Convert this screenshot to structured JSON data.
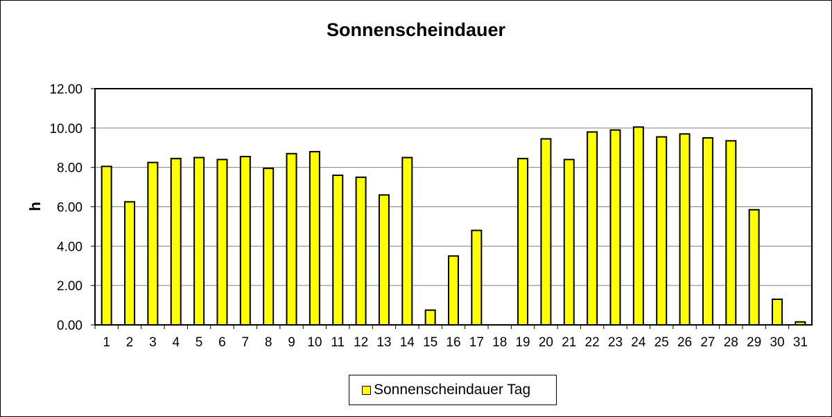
{
  "chart_data": {
    "type": "bar",
    "title": "Sonnenscheindauer",
    "ylabel": "h",
    "xlabel": "",
    "ylim": [
      0,
      12
    ],
    "yticks": [
      "0.00",
      "2.00",
      "4.00",
      "6.00",
      "8.00",
      "10.00",
      "12.00"
    ],
    "grid": true,
    "legend_position": "bottom",
    "categories": [
      "1",
      "2",
      "3",
      "4",
      "5",
      "6",
      "7",
      "8",
      "9",
      "10",
      "11",
      "12",
      "13",
      "14",
      "15",
      "16",
      "17",
      "18",
      "19",
      "20",
      "21",
      "22",
      "23",
      "24",
      "25",
      "26",
      "27",
      "28",
      "29",
      "30",
      "31"
    ],
    "series": [
      {
        "name": "Sonnenscheindauer Tag",
        "color": "#ffff00",
        "values": [
          8.05,
          6.25,
          8.25,
          8.45,
          8.5,
          8.4,
          8.55,
          7.95,
          8.7,
          8.8,
          7.6,
          7.5,
          6.6,
          8.5,
          0.75,
          3.5,
          4.8,
          0,
          8.45,
          9.45,
          8.4,
          9.8,
          9.9,
          10.05,
          9.55,
          9.7,
          9.5,
          9.35,
          5.85,
          1.3,
          0.15
        ]
      }
    ]
  }
}
